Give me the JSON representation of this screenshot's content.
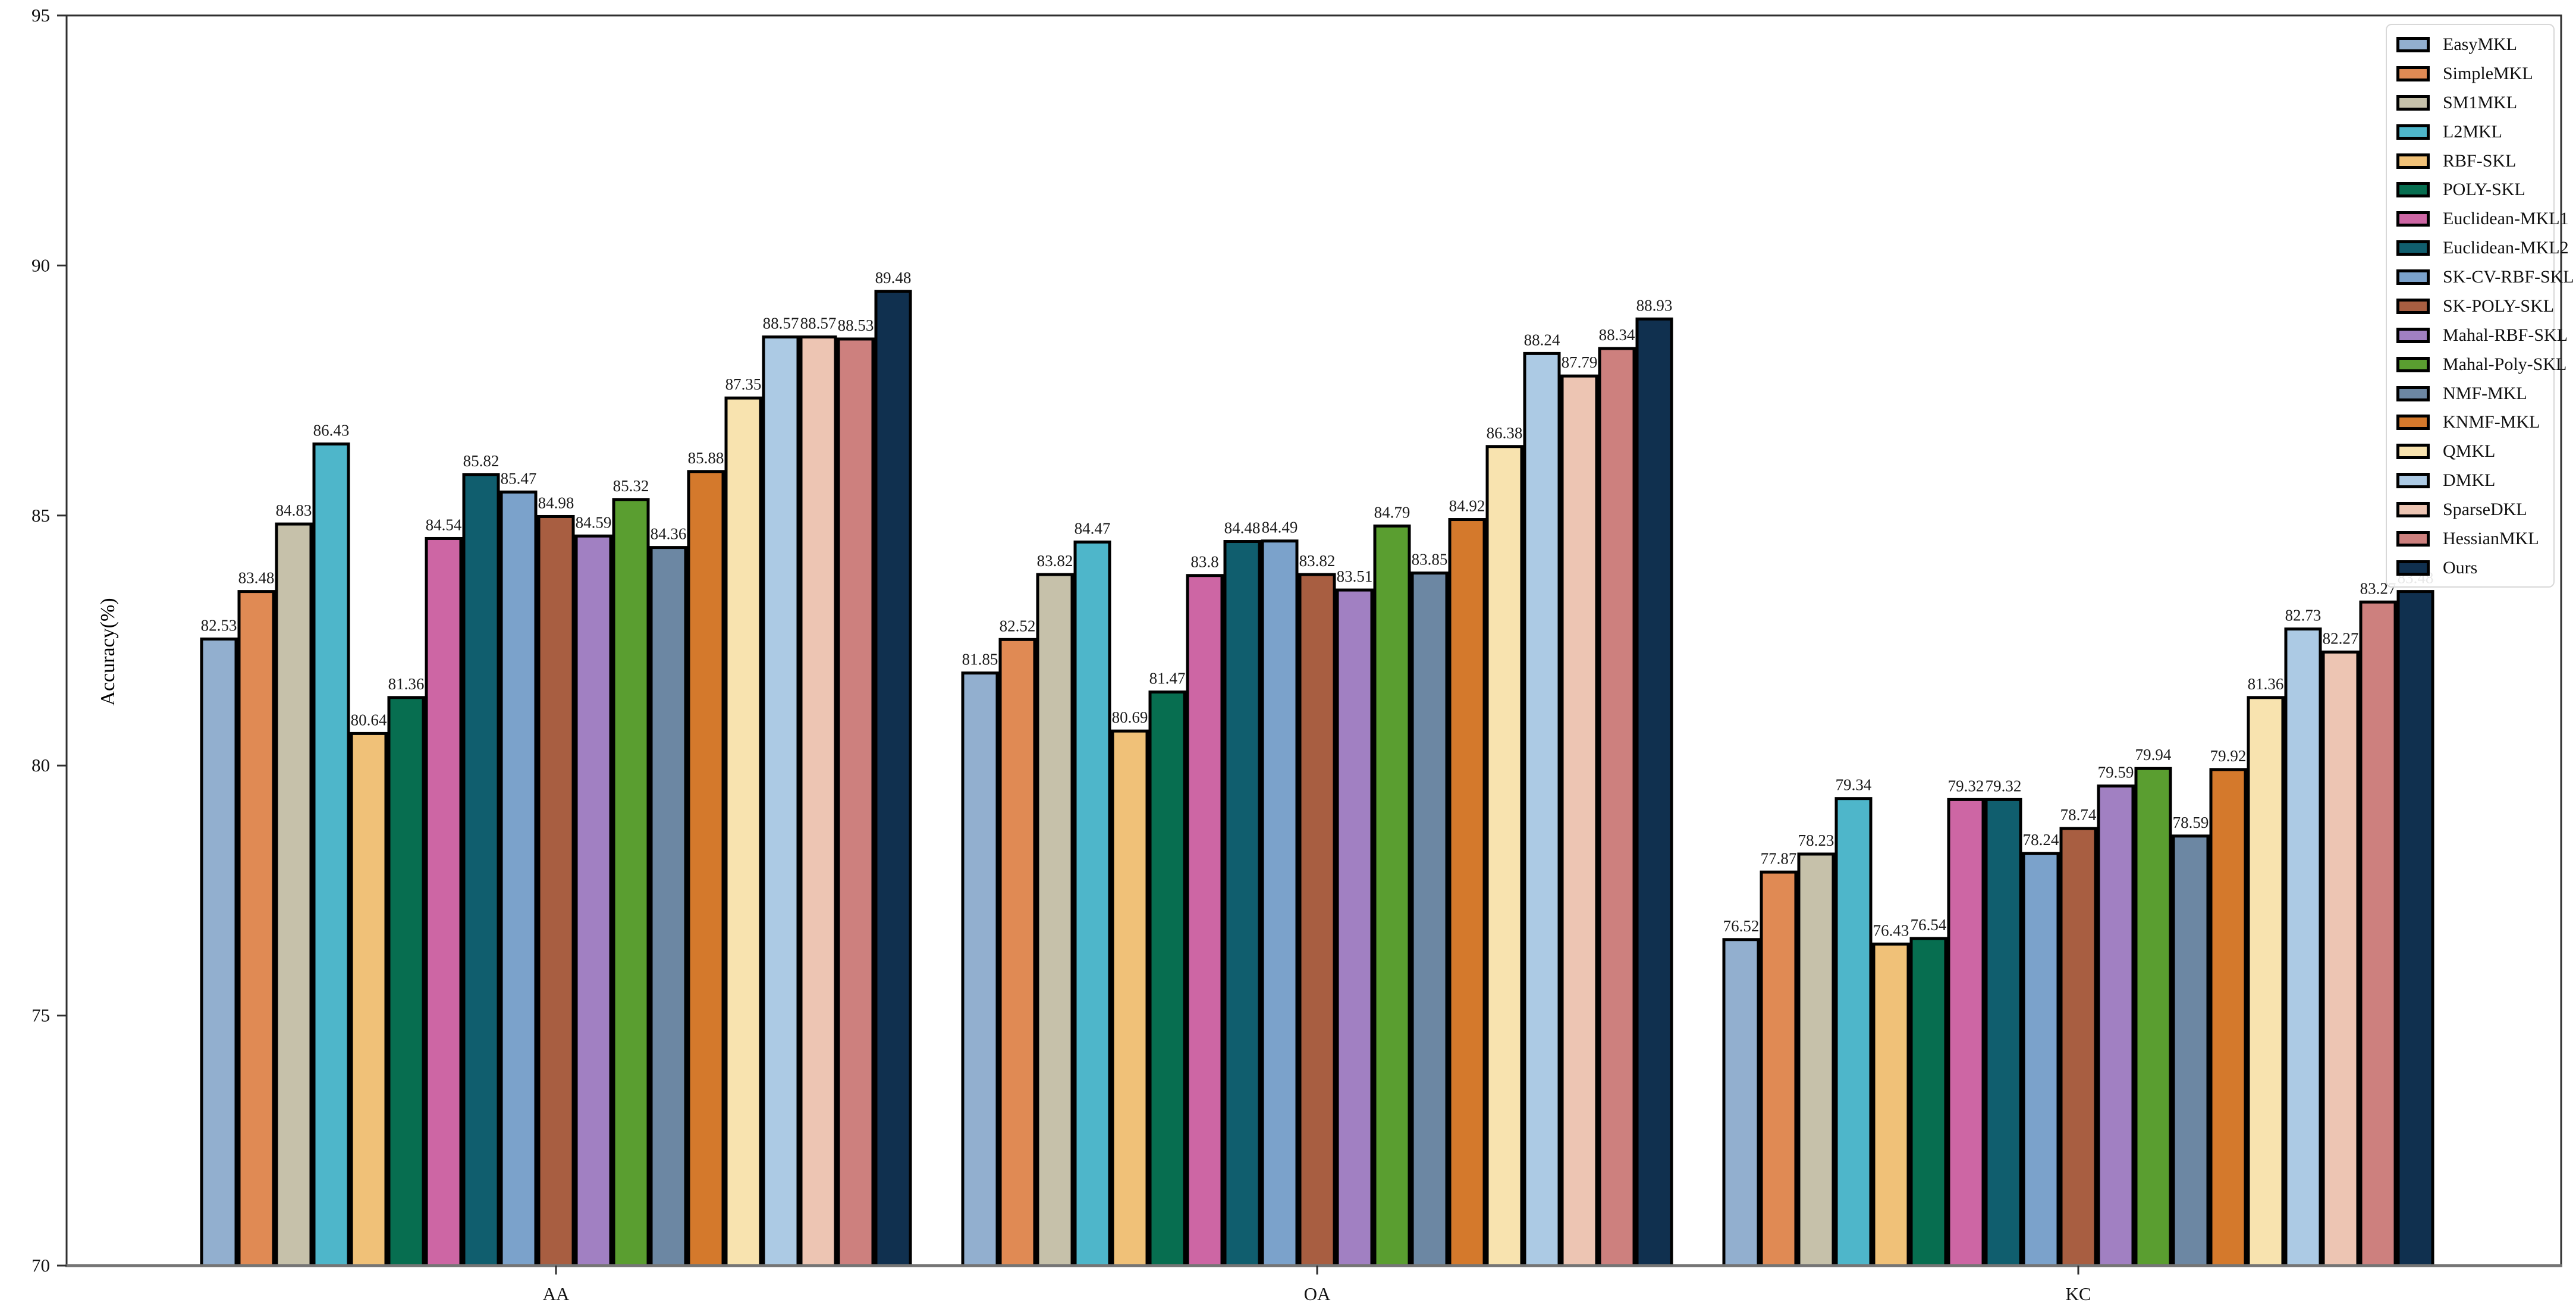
{
  "chart_data": {
    "type": "bar",
    "title": "",
    "xlabel": "",
    "ylabel": "Accuracy(%)",
    "ylim": [
      70,
      95
    ],
    "yticks": [
      70,
      75,
      80,
      85,
      90,
      95
    ],
    "categories": [
      "AA",
      "OA",
      "KC"
    ],
    "grid": false,
    "legend_position": "upper right",
    "bar_edge_color": "#000000",
    "series": [
      {
        "name": "EasyMKL",
        "color": "#92afcf",
        "values": [
          82.53,
          81.85,
          76.52
        ]
      },
      {
        "name": "SimpleMKL",
        "color": "#e08a54",
        "values": [
          83.48,
          82.52,
          77.87
        ]
      },
      {
        "name": "SM1MKL",
        "color": "#c6c1aa",
        "values": [
          84.83,
          83.82,
          78.23
        ]
      },
      {
        "name": "L2MKL",
        "color": "#4eb6ca",
        "values": [
          86.43,
          84.47,
          79.34
        ]
      },
      {
        "name": "RBF-SKL",
        "color": "#f0c178",
        "values": [
          80.64,
          80.69,
          76.43
        ]
      },
      {
        "name": "POLY-SKL",
        "color": "#076e50",
        "values": [
          81.36,
          81.47,
          76.54
        ]
      },
      {
        "name": "Euclidean-MKL1",
        "color": "#cd66a4",
        "values": [
          84.54,
          83.8,
          79.32
        ]
      },
      {
        "name": "Euclidean-MKL2",
        "color": "#105e6e",
        "values": [
          85.82,
          84.48,
          79.32
        ]
      },
      {
        "name": "SK-CV-RBF-SKL",
        "color": "#7ba2cb",
        "values": [
          85.47,
          84.49,
          78.24
        ]
      },
      {
        "name": "SK-POLY-SKL",
        "color": "#a85e41",
        "values": [
          84.98,
          83.82,
          78.74
        ]
      },
      {
        "name": "Mahal-RBF-SKL",
        "color": "#a180c2",
        "values": [
          84.59,
          83.51,
          79.59
        ]
      },
      {
        "name": "Mahal-Poly-SKL",
        "color": "#5a9e30",
        "values": [
          85.32,
          84.79,
          79.94
        ]
      },
      {
        "name": "NMF-MKL",
        "color": "#6c87a3",
        "values": [
          84.36,
          83.85,
          78.59
        ]
      },
      {
        "name": "KNMF-MKL",
        "color": "#d4792c",
        "values": [
          85.88,
          84.92,
          79.92
        ]
      },
      {
        "name": "QMKL",
        "color": "#f8e3af",
        "values": [
          87.35,
          86.38,
          81.36
        ]
      },
      {
        "name": "DMKL",
        "color": "#accae4",
        "values": [
          88.57,
          88.24,
          82.73
        ]
      },
      {
        "name": "SparseDKL",
        "color": "#edc5b3",
        "values": [
          88.57,
          87.79,
          82.27
        ]
      },
      {
        "name": "HessianMKL",
        "color": "#cd807e",
        "values": [
          88.53,
          88.34,
          83.27
        ]
      },
      {
        "name": "Ours",
        "color": "#10304f",
        "values": [
          89.48,
          88.93,
          83.48
        ]
      }
    ]
  }
}
